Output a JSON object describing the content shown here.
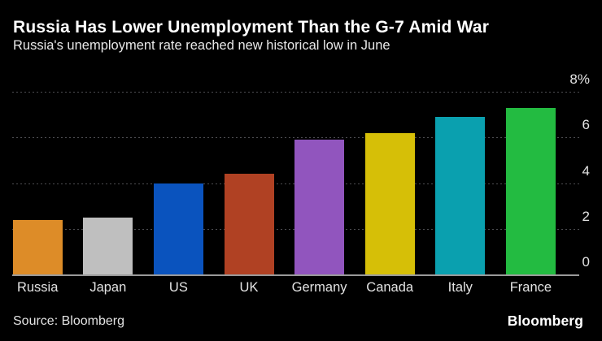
{
  "header": {
    "title": "Russia Has Lower Unemployment Than the G-7 Amid War",
    "subtitle": "Russia's unemployment rate reached new historical low in June"
  },
  "footer": {
    "source": "Source: Bloomberg",
    "logo": "Bloomberg"
  },
  "colors": {
    "background": "#000000",
    "title_text": "#ffffff",
    "subtitle_text": "#e8e8e8",
    "axis_text": "#e3e3e3",
    "gridline": "#4e4e52",
    "baseline": "#9a9a9a"
  },
  "chart_data": {
    "type": "bar",
    "title": "Russia Has Lower Unemployment Than the G-7 Amid War",
    "subtitle": "Russia's unemployment rate reached new historical low in June",
    "categories": [
      "Russia",
      "Japan",
      "US",
      "UK",
      "Germany",
      "Canada",
      "Italy",
      "France"
    ],
    "values": [
      2.4,
      2.5,
      4.0,
      4.4,
      5.9,
      6.2,
      6.9,
      7.3
    ],
    "bar_colors": [
      "#DD8C28",
      "#BFBFBF",
      "#0A53BE",
      "#B04123",
      "#9155BE",
      "#D6BF07",
      "#0AA0AF",
      "#23BB41"
    ],
    "unit": "%",
    "ylim": [
      0,
      8
    ],
    "yticks": [
      0,
      2,
      4,
      6,
      8
    ],
    "ytick_labels": [
      "0",
      "2",
      "4",
      "6",
      "8%"
    ],
    "axis_side": "right",
    "grid": "horizontal-dotted",
    "legend": "none",
    "source": "Source: Bloomberg"
  }
}
